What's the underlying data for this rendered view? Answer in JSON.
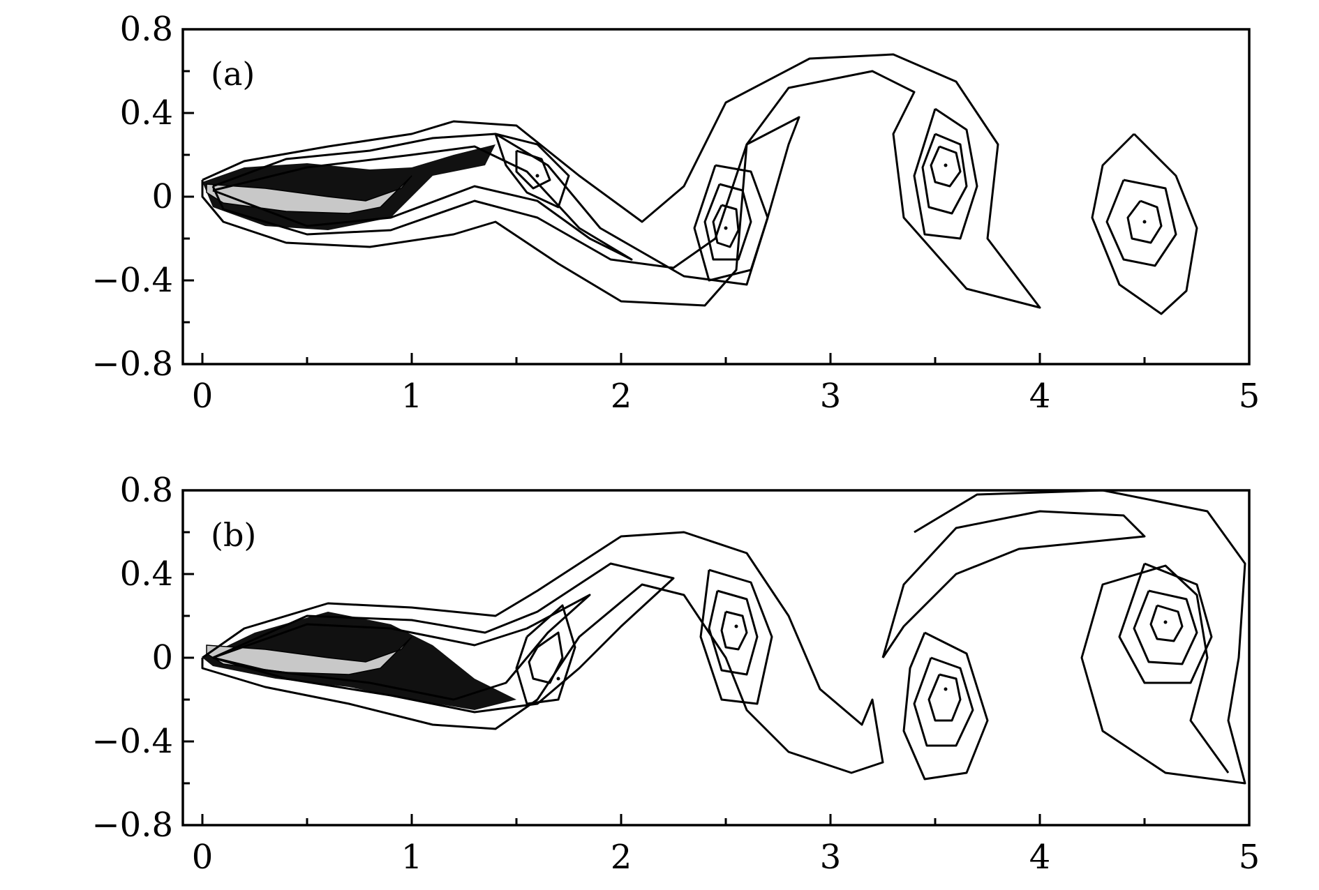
{
  "chart_data": [
    {
      "type": "contour",
      "panel_label": "(a)",
      "x_ticks": [
        "0",
        "1",
        "2",
        "3",
        "4",
        "5"
      ],
      "y_ticks": [
        "0.8",
        "0.4",
        "0",
        "−0.4",
        "−0.8"
      ],
      "xlim": [
        0,
        5
      ],
      "ylim": [
        -0.8,
        0.8
      ],
      "vortices": [
        {
          "x": 1.6,
          "y": 0.1
        },
        {
          "x": 2.5,
          "y": -0.15
        },
        {
          "x": 3.55,
          "y": 0.15
        },
        {
          "x": 4.5,
          "y": -0.12
        }
      ]
    },
    {
      "type": "contour",
      "panel_label": "(b)",
      "x_ticks": [
        "0",
        "1",
        "2",
        "3",
        "4",
        "5"
      ],
      "y_ticks": [
        "0.8",
        "0.4",
        "0",
        "−0.4",
        "−0.8"
      ],
      "xlim": [
        0,
        5
      ],
      "ylim": [
        -0.8,
        0.8
      ],
      "vortices": [
        {
          "x": 1.7,
          "y": -0.1
        },
        {
          "x": 2.55,
          "y": 0.15
        },
        {
          "x": 3.55,
          "y": -0.15
        },
        {
          "x": 4.6,
          "y": 0.17
        }
      ]
    }
  ]
}
